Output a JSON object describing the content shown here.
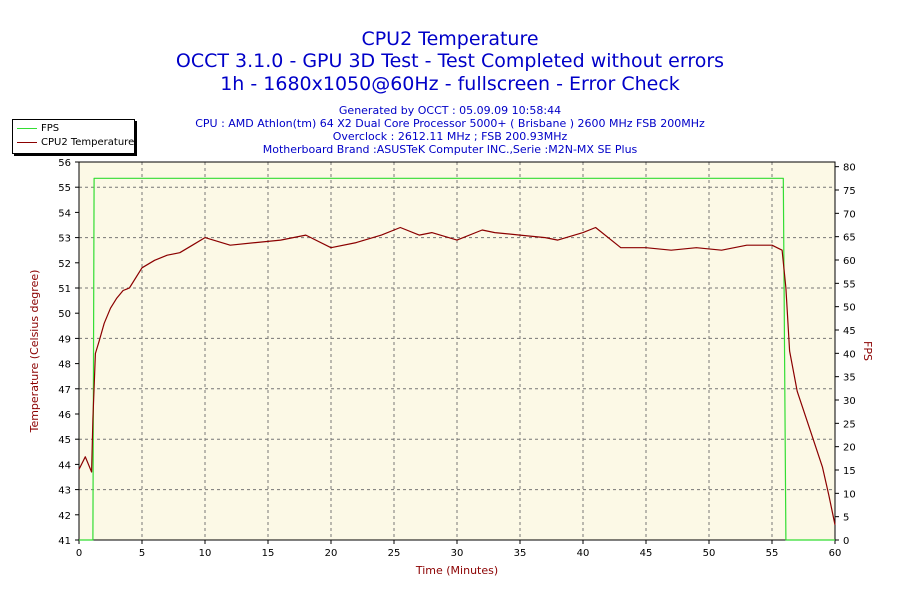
{
  "titles": [
    "CPU2 Temperature",
    "OCCT 3.1.0 - GPU 3D Test - Test Completed without errors",
    "1h - 1680x1050@60Hz - fullscreen - Error Check"
  ],
  "info_lines": [
    "Generated by OCCT : 05.09.09 10:58:44",
    "CPU : AMD Athlon(tm) 64 X2 Dual Core Processor 5000+ ( Brisbane ) 2600 MHz FSB 200MHz",
    "Overclock : 2612.11 MHz ; FSB 200.93MHz",
    "Motherboard Brand :ASUSTeK Computer INC.,Serie :M2N-MX SE Plus"
  ],
  "colors": {
    "title": "#0000c8",
    "fps_line": "#33dd33",
    "temp_line": "#8b0000",
    "plot_bg": "#fcf9e6",
    "axis_label": "#8b0000"
  },
  "legend": [
    {
      "name": "FPS",
      "color": "#33dd33"
    },
    {
      "name": "CPU2 Temperature",
      "color": "#8b0000"
    }
  ],
  "chart_data": {
    "type": "line",
    "xlabel": "Time (Minutes)",
    "ylabel_left": "Temperature (Celsius degree)",
    "ylabel_right": "FPS",
    "xlim": [
      0,
      60
    ],
    "ylim_left": [
      41,
      56
    ],
    "ylim_right": [
      0,
      81
    ],
    "x_ticks": [
      0,
      5,
      10,
      15,
      20,
      25,
      30,
      35,
      40,
      45,
      50,
      55,
      60
    ],
    "y_left_ticks": [
      41,
      42,
      43,
      44,
      45,
      46,
      47,
      48,
      49,
      50,
      51,
      52,
      53,
      54,
      55,
      56
    ],
    "y_right_ticks": [
      0,
      5,
      10,
      15,
      20,
      25,
      30,
      35,
      40,
      45,
      50,
      55,
      60,
      65,
      70,
      75,
      80
    ],
    "grid": true,
    "legend_position": "top-left",
    "series": [
      {
        "name": "FPS",
        "axis": "right",
        "x": [
          0,
          1.1,
          1.2,
          2,
          5,
          10,
          15,
          20,
          25,
          30,
          35,
          40,
          45,
          50,
          55,
          55.9,
          56.1,
          60
        ],
        "y": [
          0,
          0,
          77.5,
          77.5,
          77.5,
          77.5,
          77.5,
          77.5,
          77.5,
          77.5,
          77.5,
          77.5,
          77.5,
          77.5,
          77.5,
          77.5,
          0,
          0
        ]
      },
      {
        "name": "CPU2 Temperature",
        "axis": "left",
        "x": [
          0,
          0.5,
          1,
          1.1,
          1.3,
          1.6,
          2,
          2.5,
          3,
          3.5,
          4,
          5,
          6,
          7,
          8,
          9,
          10,
          12,
          14,
          16,
          18,
          20,
          22,
          24,
          25.5,
          27,
          28,
          30,
          32,
          33,
          35,
          37,
          38,
          40,
          41,
          43,
          45,
          47,
          49,
          51,
          53,
          55,
          55.8,
          56.1,
          56.4,
          57,
          58,
          59,
          59.5,
          60
        ],
        "y": [
          43.8,
          44.3,
          43.7,
          45.8,
          48.4,
          48.9,
          49.6,
          50.2,
          50.6,
          50.9,
          51.0,
          51.8,
          52.1,
          52.3,
          52.4,
          52.7,
          53.0,
          52.7,
          52.8,
          52.9,
          53.1,
          52.6,
          52.8,
          53.1,
          53.4,
          53.1,
          53.2,
          52.9,
          53.3,
          53.2,
          53.1,
          53.0,
          52.9,
          53.2,
          53.4,
          52.6,
          52.6,
          52.5,
          52.6,
          52.5,
          52.7,
          52.7,
          52.5,
          51.0,
          48.5,
          46.9,
          45.4,
          43.9,
          42.8,
          41.6
        ]
      }
    ]
  }
}
